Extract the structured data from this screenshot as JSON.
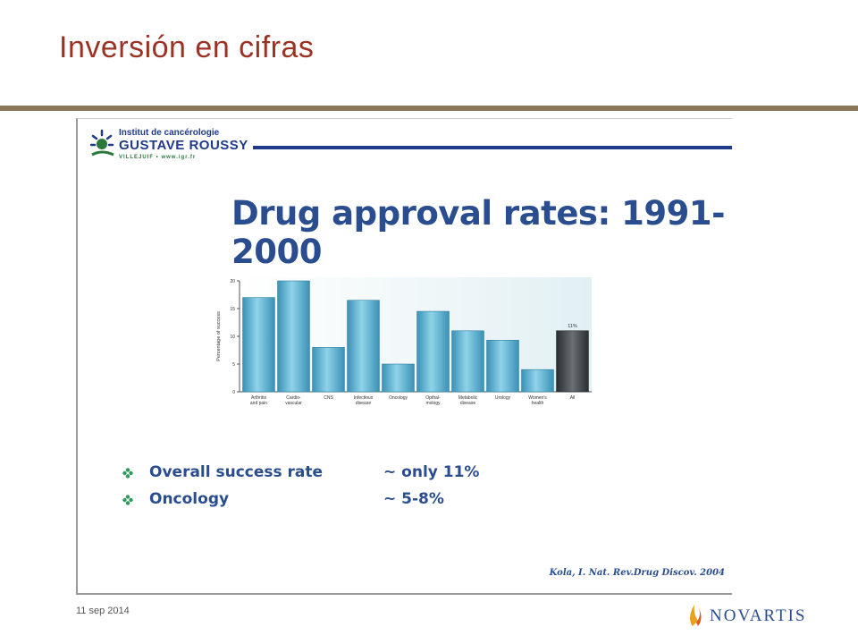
{
  "slide": {
    "title": "Inversión en cifras",
    "date": "11 sep 2014",
    "brand": "NOVARTIS"
  },
  "figure": {
    "logo": {
      "line1": "Institut de cancérologie",
      "line2": "GUSTAVE ROUSSY",
      "line3": "VILLEJUIF • www.igr.fr"
    },
    "heading": "Drug approval rates: 1991-2000",
    "bullets": [
      {
        "label": "Overall success rate",
        "value": "~ only 11%"
      },
      {
        "label": "Oncology",
        "value": "~  5-8%"
      }
    ],
    "citation": "Kola, I. Nat. Rev.Drug Discov. 2004"
  },
  "chart_data": {
    "type": "bar",
    "ylabel": "Percentage of success",
    "ylim": [
      0,
      20
    ],
    "yticks": [
      0,
      5,
      10,
      15,
      20
    ],
    "categories": [
      [
        "Arthritis",
        "and pain"
      ],
      [
        "Cardio-",
        "vascular"
      ],
      [
        "CNS"
      ],
      [
        "Infectious",
        "disease"
      ],
      [
        "Oncology"
      ],
      [
        "Opthal-",
        "mology"
      ],
      [
        "Metabolic",
        "disease"
      ],
      [
        "Urology"
      ],
      [
        "Women's",
        "health"
      ],
      [
        "All"
      ]
    ],
    "values": [
      17,
      20,
      8,
      16.5,
      5,
      14.5,
      11,
      9.3,
      4,
      11
    ],
    "annotations": [
      {
        "category_index": 9,
        "text": "11%"
      }
    ],
    "colors": {
      "bar": "#5fb3d4",
      "bar_dark": "#3a91b5",
      "highlight": "#3b3f44",
      "background": "#e2f0f3"
    }
  }
}
